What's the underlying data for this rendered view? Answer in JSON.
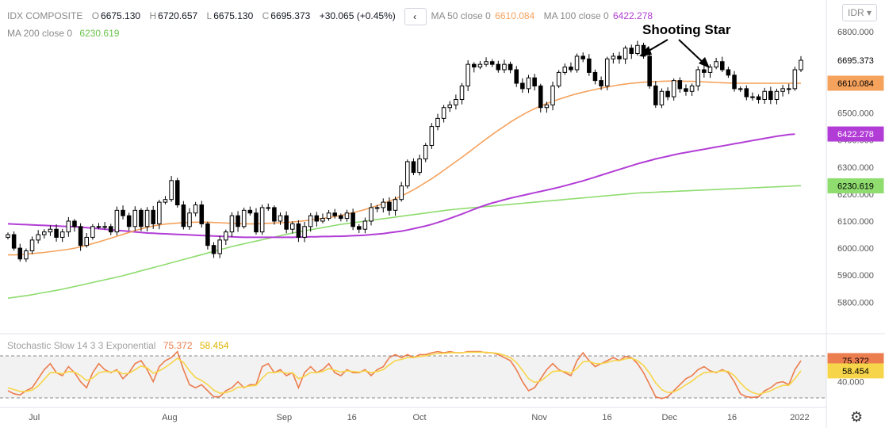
{
  "legend": {
    "symbol": "IDX COMPOSITE",
    "open_k": "O",
    "open": "6675.130",
    "high_k": "H",
    "high": "6720.657",
    "low_k": "L",
    "low": "6675.130",
    "close_k": "C",
    "close": "6695.373",
    "change": "+30.065 (+0.45%)",
    "collapse_icon": "‹",
    "ma50_label": "MA 50 close 0",
    "ma50_value": "6610.084",
    "ma100_label": "MA 100 close 0",
    "ma100_value": "6422.278",
    "ma200_label": "MA 200 close 0",
    "ma200_value": "6230.619"
  },
  "currency_button": "IDR",
  "settings_icon": "gear-icon",
  "annotation": "Shooting Star",
  "stochastic": {
    "label": "Stochastic Slow 14 3 3 Exponential",
    "k": "75.372",
    "d": "58.454"
  },
  "colors": {
    "up": "#000000",
    "down": "#000000",
    "ma50": "#f5a25d",
    "ma100": "#b23dd6",
    "ma200": "#8fdc6f",
    "stoch_k": "#ec7d4e",
    "stoch_d": "#f7d54a",
    "price_badge": "#ffffff",
    "stoch_band": "#f2f2f2"
  },
  "chart_data": [
    {
      "type": "candlestick",
      "title": "IDX COMPOSITE",
      "x_ticks": [
        "Jul",
        "Aug",
        "Sep",
        "16",
        "Oct",
        "Nov",
        "16",
        "Dec",
        "16",
        "2022"
      ],
      "y_ticks": [
        "5800.000",
        "5900.000",
        "6000.000",
        "6100.000",
        "6200.000",
        "6300.000",
        "6400.000",
        "6500.000",
        "6600.000",
        "6700.000",
        "6800.000"
      ],
      "ylim": [
        5710,
        6830
      ],
      "last_price": "6695.373",
      "ma50_last": "6610.084",
      "ma100_last": "6422.278",
      "ma200_last": "6230.619",
      "close": [
        6050,
        6000,
        5960,
        5990,
        6030,
        6050,
        6060,
        6070,
        6040,
        6060,
        6100,
        6080,
        6010,
        6040,
        6080,
        6080,
        6080,
        6060,
        6140,
        6120,
        6080,
        6140,
        6080,
        6140,
        6090,
        6170,
        6180,
        6250,
        6160,
        6080,
        6130,
        6160,
        6090,
        6010,
        5980,
        6030,
        6060,
        6120,
        6080,
        6140,
        6130,
        6060,
        6150,
        6150,
        6100,
        6120,
        6070,
        6090,
        6040,
        6080,
        6120,
        6100,
        6110,
        6130,
        6120,
        6110,
        6130,
        6080,
        6070,
        6100,
        6150,
        6150,
        6170,
        6140,
        6180,
        6230,
        6320,
        6280,
        6330,
        6380,
        6450,
        6480,
        6520,
        6530,
        6550,
        6600,
        6680,
        6670,
        6680,
        6690,
        6680,
        6660,
        6680,
        6660,
        6610,
        6590,
        6630,
        6600,
        6520,
        6530,
        6600,
        6650,
        6670,
        6660,
        6710,
        6700,
        6650,
        6620,
        6600,
        6700,
        6710,
        6700,
        6740,
        6720,
        6750,
        6710,
        6600,
        6530,
        6580,
        6560,
        6620,
        6590,
        6580,
        6600,
        6660,
        6650,
        6670,
        6690,
        6660,
        6640,
        6590,
        6590,
        6560,
        6560,
        6550,
        6580,
        6550,
        6580,
        6590,
        6590,
        6660,
        6695
      ],
      "ma50": [
        5975,
        5975,
        5976,
        5978,
        5980,
        5982,
        5984,
        5987,
        5990,
        5993,
        5996,
        6000,
        6005,
        6011,
        6017,
        6023,
        6030,
        6037,
        6044,
        6051,
        6058,
        6065,
        6071,
        6077,
        6082,
        6086,
        6089,
        6091,
        6093,
        6094,
        6095,
        6096,
        6096,
        6096,
        6095,
        6094,
        6093,
        6092,
        6091,
        6090,
        6090,
        6090,
        6091,
        6092,
        6093,
        6094,
        6095,
        6097,
        6099,
        6101,
        6104,
        6107,
        6110,
        6113,
        6117,
        6121,
        6126,
        6131,
        6137,
        6143,
        6150,
        6157,
        6165,
        6174,
        6183,
        6193,
        6204,
        6216,
        6229,
        6243,
        6257,
        6272,
        6288,
        6304,
        6320,
        6336,
        6353,
        6370,
        6387,
        6404,
        6420,
        6436,
        6451,
        6466,
        6480,
        6493,
        6505,
        6516,
        6526,
        6535,
        6543,
        6551,
        6558,
        6565,
        6571,
        6577,
        6582,
        6587,
        6592,
        6596,
        6600,
        6604,
        6607,
        6610,
        6612,
        6614,
        6615,
        6616,
        6617,
        6618,
        6618,
        6618,
        6617,
        6617,
        6616,
        6615,
        6614,
        6613,
        6612,
        6611,
        6610,
        6610,
        6610,
        6610,
        6610,
        6610,
        6610,
        6610,
        6610,
        6610,
        6610,
        6610
      ],
      "ma100": [
        6090,
        6089,
        6088,
        6087,
        6086,
        6085,
        6084,
        6083,
        6082,
        6081,
        6080,
        6079,
        6078,
        6076,
        6074,
        6072,
        6070,
        6068,
        6066,
        6064,
        6062,
        6060,
        6058,
        6056,
        6055,
        6054,
        6053,
        6052,
        6051,
        6050,
        6049,
        6048,
        6047,
        6046,
        6045,
        6044,
        6043,
        6042,
        6041,
        6040,
        6040,
        6040,
        6040,
        6040,
        6040,
        6040,
        6040,
        6040,
        6041,
        6041,
        6042,
        6042,
        6043,
        6043,
        6044,
        6044,
        6045,
        6046,
        6047,
        6048,
        6050,
        6052,
        6054,
        6057,
        6060,
        6063,
        6067,
        6072,
        6077,
        6082,
        6088,
        6095,
        6102,
        6110,
        6118,
        6126,
        6135,
        6144,
        6152,
        6160,
        6167,
        6173,
        6179,
        6185,
        6190,
        6195,
        6200,
        6205,
        6210,
        6215,
        6220,
        6225,
        6231,
        6237,
        6243,
        6249,
        6256,
        6263,
        6270,
        6277,
        6284,
        6291,
        6298,
        6305,
        6312,
        6318,
        6324,
        6330,
        6335,
        6340,
        6345,
        6350,
        6354,
        6358,
        6362,
        6366,
        6370,
        6374,
        6378,
        6382,
        6386,
        6390,
        6394,
        6398,
        6402,
        6406,
        6410,
        6414,
        6417,
        6420,
        6422
      ],
      "ma200": [
        5815,
        5818,
        5821,
        5824,
        5828,
        5832,
        5836,
        5840,
        5844,
        5848,
        5853,
        5858,
        5863,
        5868,
        5873,
        5878,
        5883,
        5888,
        5893,
        5898,
        5904,
        5910,
        5916,
        5922,
        5928,
        5934,
        5940,
        5946,
        5952,
        5958,
        5964,
        5970,
        5976,
        5982,
        5988,
        5994,
        6000,
        6006,
        6011,
        6016,
        6021,
        6026,
        6031,
        6036,
        6041,
        6046,
        6051,
        6056,
        6060,
        6064,
        6068,
        6072,
        6076,
        6080,
        6084,
        6088,
        6091,
        6094,
        6097,
        6100,
        6103,
        6106,
        6109,
        6112,
        6115,
        6118,
        6121,
        6124,
        6127,
        6130,
        6133,
        6136,
        6139,
        6142,
        6144,
        6146,
        6148,
        6150,
        6152,
        6154,
        6156,
        6158,
        6160,
        6162,
        6164,
        6166,
        6168,
        6170,
        6172,
        6174,
        6176,
        6178,
        6180,
        6182,
        6184,
        6186,
        6188,
        6190,
        6192,
        6194,
        6196,
        6198,
        6200,
        6202,
        6204,
        6205,
        6206,
        6207,
        6208,
        6209,
        6210,
        6211,
        6212,
        6213,
        6214,
        6215,
        6216,
        6217,
        6218,
        6219,
        6220,
        6221,
        6222,
        6223,
        6224,
        6225,
        6226,
        6227,
        6228,
        6229,
        6230,
        6231
      ]
    },
    {
      "type": "line",
      "title": "Stochastic Slow 14 3 3 Exponential",
      "ylim": [
        0,
        100
      ],
      "levels": [
        80,
        20
      ],
      "y_ticks": [
        "40.000"
      ],
      "series": [
        {
          "name": "K",
          "values": [
            25,
            20,
            18,
            25,
            30,
            45,
            60,
            70,
            55,
            50,
            65,
            55,
            40,
            30,
            55,
            70,
            60,
            55,
            60,
            45,
            55,
            70,
            75,
            60,
            40,
            65,
            75,
            80,
            90,
            60,
            35,
            30,
            35,
            25,
            15,
            15,
            25,
            30,
            40,
            30,
            35,
            35,
            65,
            70,
            55,
            60,
            50,
            55,
            30,
            55,
            65,
            55,
            60,
            70,
            55,
            50,
            60,
            55,
            55,
            60,
            50,
            60,
            65,
            80,
            85,
            80,
            85,
            80,
            85,
            85,
            88,
            90,
            88,
            90,
            88,
            88,
            90,
            90,
            90,
            88,
            88,
            85,
            80,
            75,
            60,
            40,
            25,
            30,
            45,
            60,
            70,
            60,
            55,
            50,
            75,
            88,
            75,
            65,
            70,
            75,
            80,
            75,
            82,
            80,
            70,
            55,
            35,
            15,
            12,
            15,
            25,
            35,
            45,
            50,
            60,
            65,
            58,
            55,
            60,
            55,
            40,
            20,
            15,
            14,
            15,
            25,
            30,
            38,
            40,
            35,
            60,
            75
          ]
        },
        {
          "name": "D",
          "values": [
            30,
            27,
            24,
            24,
            26,
            33,
            44,
            55,
            55,
            53,
            57,
            56,
            50,
            42,
            46,
            55,
            57,
            56,
            58,
            53,
            54,
            60,
            66,
            63,
            54,
            58,
            64,
            71,
            79,
            72,
            58,
            47,
            42,
            35,
            26,
            21,
            22,
            25,
            31,
            31,
            33,
            34,
            46,
            55,
            55,
            57,
            54,
            55,
            45,
            49,
            55,
            55,
            57,
            62,
            59,
            56,
            58,
            57,
            56,
            58,
            55,
            57,
            60,
            68,
            75,
            77,
            80,
            80,
            82,
            83,
            85,
            87,
            87,
            88,
            88,
            88,
            89,
            89,
            89,
            89,
            88,
            87,
            84,
            80,
            72,
            59,
            45,
            39,
            41,
            49,
            57,
            58,
            57,
            54,
            62,
            73,
            74,
            70,
            70,
            72,
            75,
            75,
            78,
            79,
            75,
            67,
            54,
            38,
            27,
            22,
            23,
            28,
            35,
            41,
            49,
            55,
            56,
            56,
            58,
            57,
            50,
            38,
            28,
            22,
            19,
            22,
            25,
            30,
            34,
            34,
            45,
            58
          ]
        }
      ]
    }
  ]
}
